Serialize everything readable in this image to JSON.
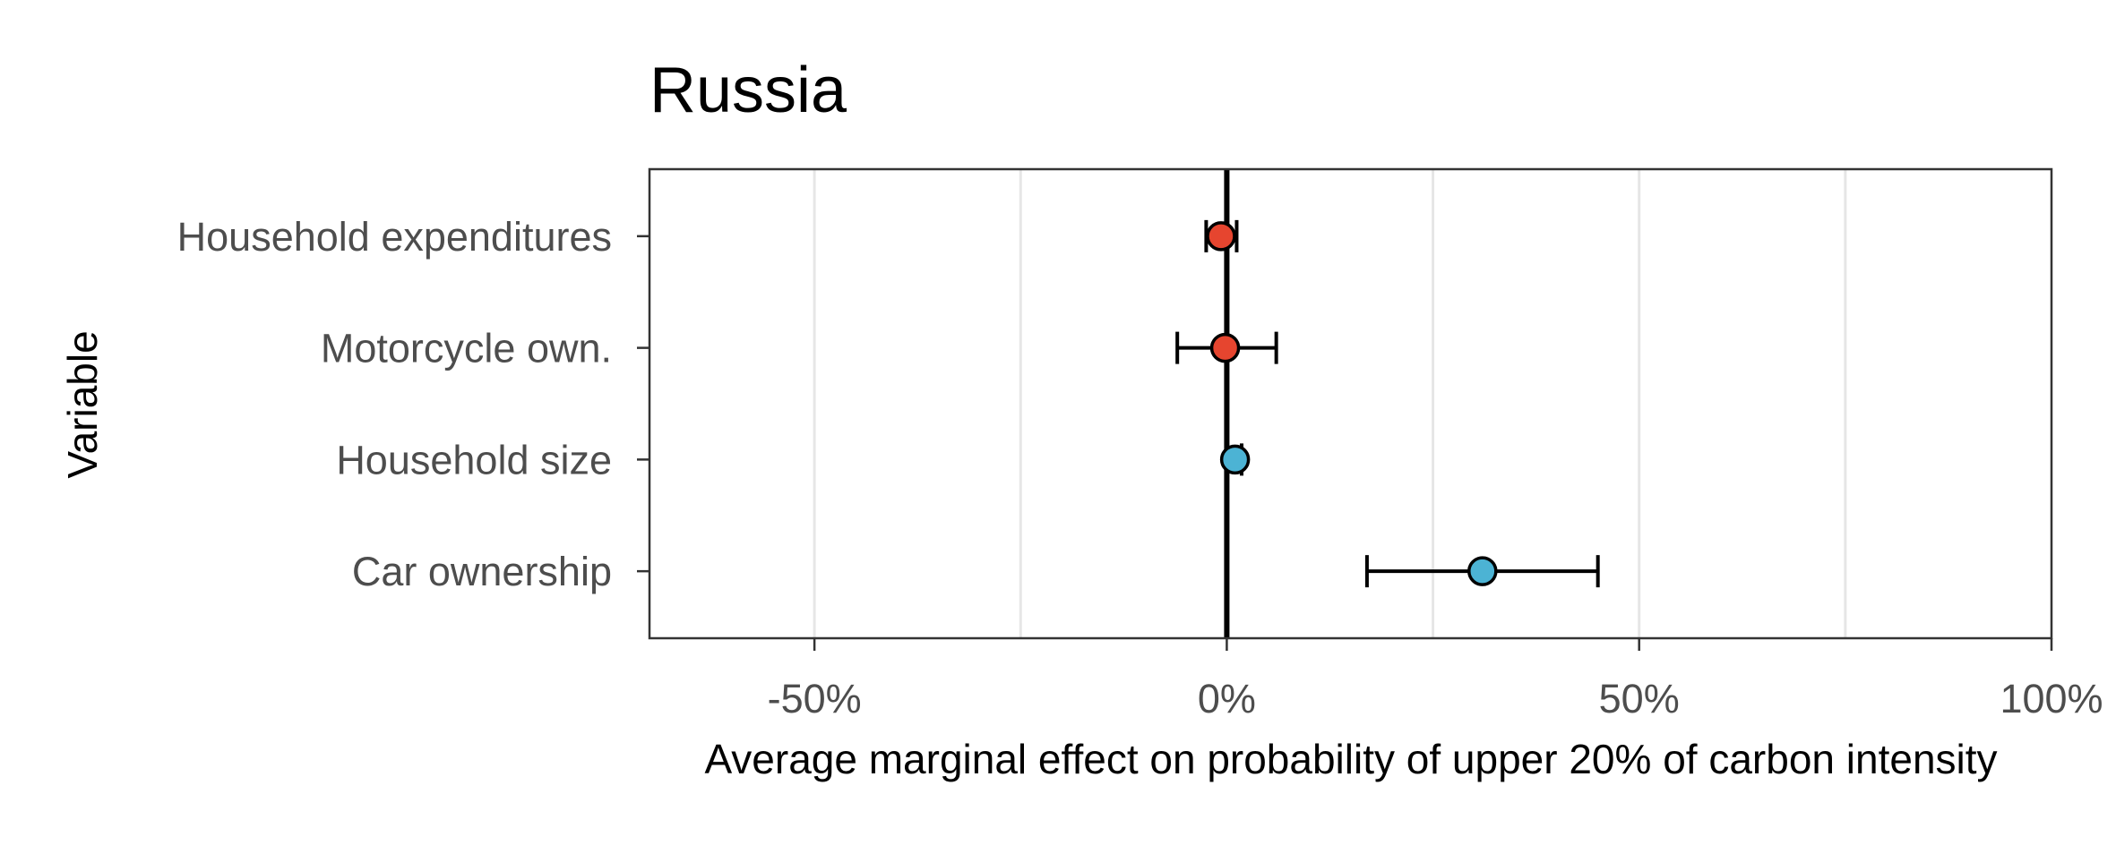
{
  "chart_data": {
    "type": "scatter",
    "subtype": "forest-plot",
    "title": "Russia",
    "xlabel": "Average marginal effect on probability of upper 20% of carbon intensity",
    "ylabel": "Variable",
    "xlim": [
      -70,
      100
    ],
    "x_ticks": [
      -50,
      0,
      50,
      100
    ],
    "x_tick_labels": [
      "-50%",
      "0%",
      "50%",
      "100%"
    ],
    "x_minor_grid": [
      -25,
      25,
      75
    ],
    "reference_line": 0,
    "grid": true,
    "colors": {
      "negative": "#e6452f",
      "positive": "#4cb3d4",
      "reference": "#000000",
      "grid": "#e6e6e6",
      "frame": "#333333"
    },
    "categories": [
      "Household expenditures",
      "Motorcycle own.",
      "Household size",
      "Car ownership"
    ],
    "points": [
      {
        "label": "Household expenditures",
        "estimate": -0.7,
        "ci_low": -2.5,
        "ci_high": 1.2,
        "sign": "negative"
      },
      {
        "label": "Motorcycle own.",
        "estimate": -0.2,
        "ci_low": -6.0,
        "ci_high": 6.0,
        "sign": "negative"
      },
      {
        "label": "Household size",
        "estimate": 1.0,
        "ci_low": 0.0,
        "ci_high": 1.8,
        "sign": "positive"
      },
      {
        "label": "Car ownership",
        "estimate": 31.0,
        "ci_low": 17.0,
        "ci_high": 45.0,
        "sign": "positive"
      }
    ]
  }
}
